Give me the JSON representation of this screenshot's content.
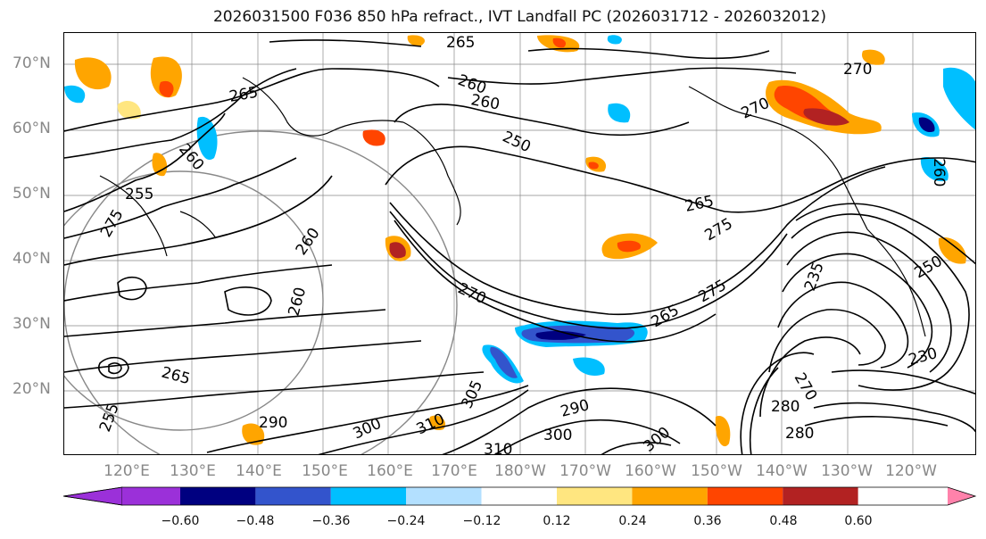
{
  "title": "2026031500 F036 850 hPa refract., IVT Landfall PC (2026031712 - 2026032012)",
  "map": {
    "lat_labels": [
      "70°N",
      "60°N",
      "50°N",
      "40°N",
      "30°N",
      "20°N"
    ],
    "lon_labels": [
      "120°E",
      "130°E",
      "140°E",
      "150°E",
      "160°E",
      "170°E",
      "180°W",
      "170°W",
      "160°W",
      "150°W",
      "140°W",
      "130°W",
      "120°W"
    ],
    "contour_labels": [
      "265",
      "260",
      "260",
      "270",
      "265",
      "260",
      "255",
      "250",
      "275",
      "260",
      "260",
      "270",
      "265",
      "270",
      "275",
      "235",
      "275",
      "265",
      "265",
      "280",
      "290",
      "290",
      "300",
      "310",
      "305",
      "300",
      "310",
      "300",
      "280",
      "270",
      "250",
      "230",
      "255",
      "260"
    ],
    "grid": true,
    "projection_marks": "circle outlines"
  },
  "colorbar": {
    "colors": [
      "#9b30d9",
      "#000080",
      "#3354cc",
      "#00bfff",
      "#b3e0ff",
      "#ffffff",
      "#ffe680",
      "#ffa500",
      "#ff4500",
      "#b22222",
      "#ff82ab"
    ],
    "ticks": [
      "−0.60",
      "−0.48",
      "−0.36",
      "−0.24",
      "−0.12",
      "0.12",
      "0.24",
      "0.36",
      "0.48",
      "0.60"
    ],
    "extend": "both"
  }
}
